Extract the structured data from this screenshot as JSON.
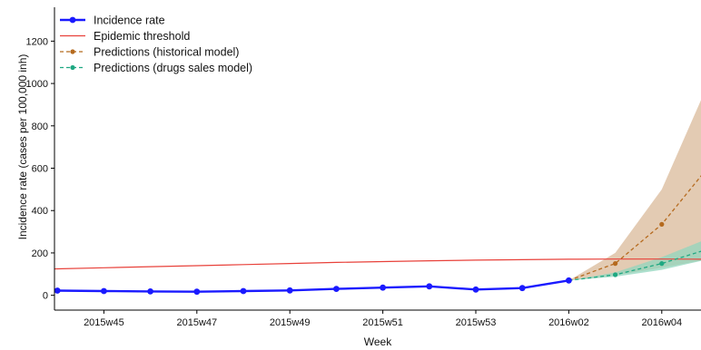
{
  "chart_data": {
    "type": "line",
    "xlabel": "Week",
    "ylabel": "Incidence rate (cases per 100,000 inh)",
    "ylim": [
      -70,
      1360
    ],
    "yticks": [
      0,
      200,
      400,
      600,
      800,
      1000,
      1200
    ],
    "x_tick_labels": [
      "2015w45",
      "2015w47",
      "2015w49",
      "2015w51",
      "2015w53",
      "2016w02",
      "2016w04"
    ],
    "x_tick_index": [
      2,
      4,
      6,
      8,
      10,
      12,
      14
    ],
    "legend": {
      "placement": "top-left",
      "entries": [
        {
          "label": "Incidence rate",
          "series": "incidence"
        },
        {
          "label": "Epidemic threshold",
          "series": "threshold"
        },
        {
          "label": "Predictions (historical model)",
          "series": "historical"
        },
        {
          "label": "Predictions (drugs sales model)",
          "series": "drugs"
        }
      ]
    },
    "series": [
      {
        "id": "incidence",
        "color": "#1a1aff",
        "x": [
          "2015w43",
          "2015w44",
          "2015w45",
          "2015w46",
          "2015w47",
          "2015w48",
          "2015w49",
          "2015w50",
          "2015w51",
          "2015w52",
          "2015w53",
          "2016w01"
        ],
        "values": [
          22,
          20,
          18,
          17,
          20,
          23,
          30,
          36,
          42,
          27,
          34,
          70
        ]
      },
      {
        "id": "threshold",
        "color": "#e8413a",
        "x": [
          "2015w42",
          "2015w43",
          "2015w44",
          "2015w45",
          "2015w46",
          "2015w47",
          "2015w48",
          "2015w49",
          "2015w50",
          "2015w51",
          "2015w52",
          "2015w53",
          "2016w01",
          "2016w02",
          "2016w03",
          "2016w04"
        ],
        "values": [
          120,
          125,
          130,
          135,
          140,
          145,
          150,
          155,
          159,
          163,
          166,
          168,
          170,
          171,
          171,
          170
        ]
      },
      {
        "id": "historical",
        "color": "#b56a1e",
        "band_color": "#d9b99a",
        "x": [
          "2016w01",
          "2016w02",
          "2016w03",
          "2016w04"
        ],
        "values": [
          70,
          150,
          335,
          605
        ],
        "lower": [
          70,
          95,
          130,
          170
        ],
        "upper": [
          70,
          200,
          500,
          1000
        ]
      },
      {
        "id": "drugs",
        "color": "#1fa882",
        "band_color": "#92d5bd",
        "x": [
          "2016w01",
          "2016w02",
          "2016w03",
          "2016w04"
        ],
        "values": [
          70,
          97,
          150,
          218
        ],
        "lower": [
          70,
          88,
          120,
          170
        ],
        "upper": [
          70,
          108,
          180,
          268
        ]
      }
    ],
    "grid": false
  }
}
